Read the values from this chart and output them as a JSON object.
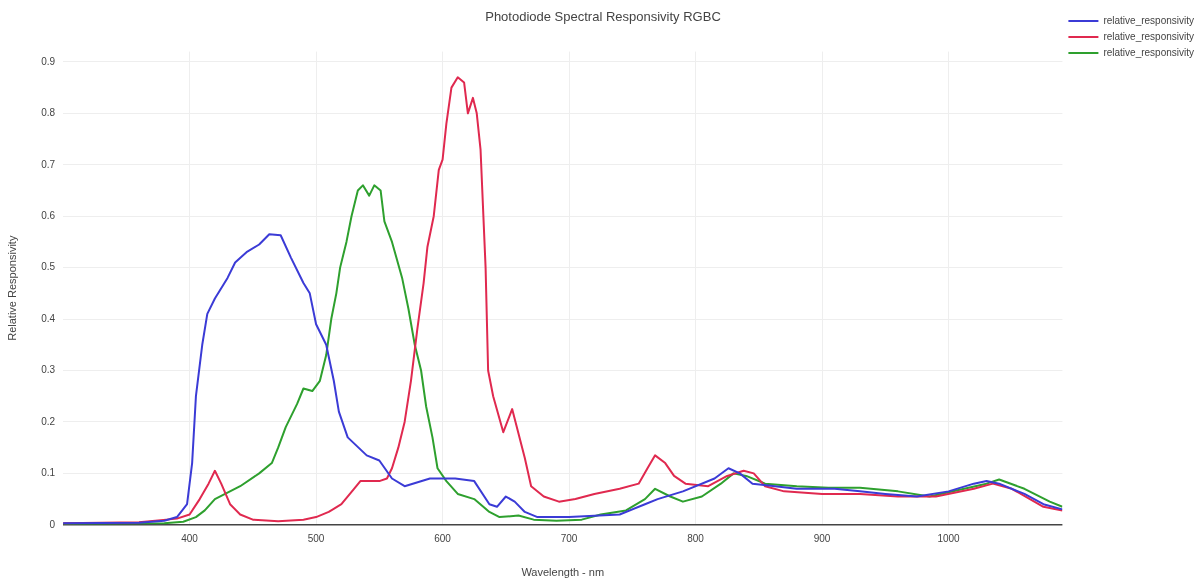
{
  "chart_data": {
    "type": "line",
    "title": "Photodiode Spectral Responsivity RGBC",
    "xlabel": "Wavelength - nm",
    "ylabel": "Relative Responsivity",
    "xlim": [
      300,
      1090
    ],
    "xticks": [
      400,
      500,
      600,
      700,
      800,
      900,
      1000
    ],
    "ylim": [
      0,
      0.92
    ],
    "yticks": [
      0,
      0.1,
      0.2,
      0.3,
      0.4,
      0.5,
      0.6,
      0.7,
      0.8,
      0.9
    ],
    "grid": true,
    "legend": "top right",
    "series": [
      {
        "name": "relative_responsivity",
        "color": "#3b3bd6",
        "x": [
          300,
          360,
          380,
          390,
          398,
          402,
          405,
          410,
          414,
          420,
          430,
          436,
          445,
          455,
          463,
          472,
          480,
          490,
          495,
          500,
          508,
          514,
          518,
          525,
          540,
          550,
          560,
          570,
          590,
          610,
          625,
          637,
          643,
          650,
          657,
          665,
          675,
          700,
          740,
          760,
          770,
          790,
          815,
          826,
          835,
          845,
          880,
          910,
          930,
          950,
          975,
          1000,
          1020,
          1030,
          1040,
          1060,
          1075,
          1090
        ],
        "values": [
          0.003,
          0.004,
          0.008,
          0.015,
          0.04,
          0.12,
          0.25,
          0.35,
          0.41,
          0.44,
          0.48,
          0.51,
          0.53,
          0.545,
          0.565,
          0.563,
          0.52,
          0.47,
          0.45,
          0.39,
          0.35,
          0.28,
          0.22,
          0.17,
          0.135,
          0.125,
          0.09,
          0.075,
          0.09,
          0.09,
          0.085,
          0.04,
          0.035,
          0.055,
          0.045,
          0.025,
          0.015,
          0.015,
          0.02,
          0.04,
          0.05,
          0.065,
          0.09,
          0.11,
          0.1,
          0.08,
          0.07,
          0.07,
          0.065,
          0.06,
          0.055,
          0.065,
          0.08,
          0.085,
          0.08,
          0.06,
          0.04,
          0.03
        ]
      },
      {
        "name": "relative_responsivity",
        "color": "#e0294f",
        "x": [
          300,
          360,
          390,
          400,
          408,
          415,
          420,
          425,
          432,
          440,
          450,
          470,
          490,
          500,
          510,
          520,
          530,
          535,
          550,
          556,
          560,
          565,
          570,
          575,
          580,
          585,
          588,
          593,
          597,
          600,
          603,
          607,
          612,
          617,
          620,
          624,
          627,
          630,
          634,
          636,
          640,
          648,
          655,
          665,
          670,
          680,
          692,
          705,
          720,
          740,
          755,
          762,
          768,
          776,
          783,
          792,
          810,
          825,
          838,
          846,
          855,
          870,
          900,
          930,
          960,
          990,
          1020,
          1035,
          1050,
          1075,
          1090
        ],
        "values": [
          0.003,
          0.005,
          0.012,
          0.02,
          0.05,
          0.08,
          0.105,
          0.08,
          0.04,
          0.02,
          0.01,
          0.007,
          0.01,
          0.015,
          0.025,
          0.04,
          0.07,
          0.085,
          0.085,
          0.09,
          0.11,
          0.15,
          0.2,
          0.28,
          0.38,
          0.47,
          0.54,
          0.6,
          0.69,
          0.71,
          0.78,
          0.85,
          0.87,
          0.86,
          0.8,
          0.83,
          0.8,
          0.73,
          0.5,
          0.3,
          0.25,
          0.18,
          0.225,
          0.13,
          0.075,
          0.055,
          0.045,
          0.05,
          0.06,
          0.07,
          0.08,
          0.11,
          0.135,
          0.12,
          0.095,
          0.08,
          0.075,
          0.095,
          0.105,
          0.1,
          0.075,
          0.065,
          0.06,
          0.06,
          0.055,
          0.055,
          0.07,
          0.08,
          0.07,
          0.035,
          0.028
        ]
      },
      {
        "name": "relative_responsivity",
        "color": "#2ea02e",
        "x": [
          300,
          380,
          395,
          405,
          412,
          420,
          440,
          455,
          465,
          470,
          476,
          485,
          490,
          497,
          503,
          508,
          512,
          516,
          519,
          524,
          528,
          533,
          537,
          542,
          546,
          551,
          554,
          560,
          568,
          573,
          578,
          583,
          587,
          592,
          596,
          603,
          612,
          625,
          637,
          645,
          660,
          672,
          690,
          710,
          725,
          745,
          760,
          768,
          780,
          790,
          805,
          820,
          830,
          840,
          855,
          880,
          905,
          930,
          960,
          985,
          1030,
          1040,
          1060,
          1080,
          1090
        ],
        "values": [
          0.002,
          0.003,
          0.006,
          0.015,
          0.028,
          0.05,
          0.075,
          0.1,
          0.12,
          0.15,
          0.19,
          0.235,
          0.265,
          0.26,
          0.28,
          0.33,
          0.4,
          0.45,
          0.5,
          0.55,
          0.6,
          0.65,
          0.66,
          0.64,
          0.66,
          0.65,
          0.59,
          0.55,
          0.48,
          0.42,
          0.35,
          0.3,
          0.23,
          0.17,
          0.11,
          0.085,
          0.06,
          0.05,
          0.025,
          0.015,
          0.018,
          0.01,
          0.008,
          0.01,
          0.02,
          0.028,
          0.05,
          0.07,
          0.055,
          0.045,
          0.055,
          0.08,
          0.1,
          0.095,
          0.08,
          0.075,
          0.072,
          0.072,
          0.065,
          0.055,
          0.08,
          0.088,
          0.07,
          0.045,
          0.035
        ]
      }
    ]
  }
}
